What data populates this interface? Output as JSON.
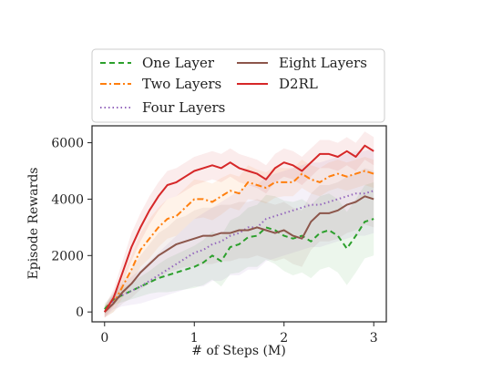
{
  "chart_data": {
    "type": "line",
    "xlabel": "# of Steps (M)",
    "ylabel": "Episode Rewards",
    "xlim": [
      -0.14,
      3.14
    ],
    "ylim": [
      -350,
      6600
    ],
    "xticks": [
      0,
      1,
      2,
      3
    ],
    "xtick_labels": [
      "0",
      "1",
      "2",
      "3"
    ],
    "yticks": [
      0,
      2000,
      4000,
      6000
    ],
    "ytick_labels": [
      "0",
      "2000",
      "4000",
      "6000"
    ],
    "grid": false,
    "legend_placement": "top (above plot)",
    "series": [
      {
        "name": "One Layer",
        "color": "#2ca02c",
        "dash": "dashed",
        "x": [
          0,
          0.1,
          0.2,
          0.3,
          0.4,
          0.5,
          0.6,
          0.7,
          0.8,
          0.9,
          1.0,
          1.1,
          1.2,
          1.3,
          1.4,
          1.5,
          1.6,
          1.7,
          1.8,
          1.9,
          2.0,
          2.1,
          2.2,
          2.3,
          2.4,
          2.5,
          2.6,
          2.7,
          2.8,
          2.9,
          3.0
        ],
        "y": [
          100,
          450,
          600,
          750,
          900,
          1050,
          1200,
          1300,
          1400,
          1500,
          1600,
          1750,
          2000,
          1800,
          2300,
          2400,
          2650,
          2700,
          3000,
          2900,
          2700,
          2600,
          2700,
          2500,
          2800,
          2900,
          2700,
          2250,
          2700,
          3200,
          3300
        ],
        "band": [
          200,
          200,
          250,
          300,
          350,
          400,
          500,
          600,
          650,
          700,
          750,
          800,
          850,
          900,
          950,
          1000,
          1050,
          1100,
          1150,
          1200,
          1250,
          1300,
          1300,
          1300,
          1300,
          1300,
          1300,
          1300,
          1300,
          1300,
          1300
        ]
      },
      {
        "name": "Two Layers",
        "color": "#ff7f0e",
        "dash": "dashdot",
        "x": [
          0,
          0.1,
          0.2,
          0.3,
          0.4,
          0.5,
          0.6,
          0.7,
          0.8,
          0.9,
          1.0,
          1.1,
          1.2,
          1.3,
          1.4,
          1.5,
          1.6,
          1.7,
          1.8,
          1.9,
          2.0,
          2.1,
          2.2,
          2.3,
          2.4,
          2.5,
          2.6,
          2.7,
          2.8,
          2.9,
          3.0
        ],
        "y": [
          0,
          300,
          900,
          1500,
          2200,
          2600,
          3000,
          3300,
          3400,
          3700,
          4000,
          4000,
          3900,
          4100,
          4300,
          4200,
          4600,
          4500,
          4400,
          4600,
          4600,
          4600,
          4900,
          4700,
          4600,
          4800,
          4900,
          4800,
          4900,
          5000,
          4900
        ],
        "band": [
          200,
          300,
          400,
          500,
          600,
          700,
          700,
          700,
          700,
          700,
          700,
          650,
          650,
          650,
          600,
          600,
          600,
          550,
          550,
          550,
          500,
          500,
          500,
          500,
          500,
          500,
          500,
          500,
          500,
          500,
          500
        ]
      },
      {
        "name": "Four Layers",
        "color": "#9467bd",
        "dash": "dotted",
        "x": [
          0,
          0.1,
          0.2,
          0.3,
          0.4,
          0.5,
          0.6,
          0.7,
          0.8,
          0.9,
          1.0,
          1.1,
          1.2,
          1.3,
          1.4,
          1.5,
          1.6,
          1.7,
          1.8,
          1.9,
          2.0,
          2.1,
          2.2,
          2.3,
          2.4,
          2.5,
          2.6,
          2.7,
          2.8,
          2.9,
          3.0
        ],
        "y": [
          0,
          400,
          600,
          750,
          900,
          1100,
          1300,
          1500,
          1700,
          1900,
          2100,
          2200,
          2400,
          2500,
          2700,
          2800,
          3000,
          3000,
          3300,
          3400,
          3500,
          3600,
          3700,
          3800,
          3800,
          3900,
          4000,
          4100,
          4200,
          4200,
          4300
        ],
        "band": [
          200,
          300,
          400,
          500,
          600,
          700,
          800,
          900,
          1000,
          1100,
          1200,
          1300,
          1300,
          1400,
          1400,
          1500,
          1500,
          1500,
          1500,
          1500,
          1500,
          1500,
          1500,
          1500,
          1500,
          1500,
          1500,
          1500,
          1500,
          1500,
          1500
        ]
      },
      {
        "name": "Eight Layers",
        "color": "#8c564b",
        "dash": "solid",
        "x": [
          0,
          0.1,
          0.2,
          0.3,
          0.4,
          0.5,
          0.6,
          0.7,
          0.8,
          0.9,
          1.0,
          1.1,
          1.2,
          1.3,
          1.4,
          1.5,
          1.6,
          1.7,
          1.8,
          1.9,
          2.0,
          2.1,
          2.2,
          2.3,
          2.4,
          2.5,
          2.6,
          2.7,
          2.8,
          2.9,
          3.0
        ],
        "y": [
          0,
          300,
          700,
          1000,
          1400,
          1700,
          2000,
          2200,
          2400,
          2500,
          2600,
          2700,
          2700,
          2800,
          2800,
          2900,
          2900,
          3000,
          2900,
          2800,
          2900,
          2700,
          2600,
          3200,
          3500,
          3500,
          3600,
          3800,
          3900,
          4100,
          4000
        ],
        "band": [
          200,
          300,
          400,
          500,
          600,
          700,
          800,
          800,
          900,
          900,
          1000,
          1000,
          1000,
          1000,
          1000,
          1000,
          1000,
          1000,
          1000,
          1000,
          1000,
          1000,
          1000,
          1000,
          1000,
          1000,
          1000,
          1000,
          1000,
          1000,
          1000
        ]
      },
      {
        "name": "D2RL",
        "color": "#d62728",
        "dash": "solid",
        "x": [
          0,
          0.1,
          0.2,
          0.3,
          0.4,
          0.5,
          0.6,
          0.7,
          0.8,
          0.9,
          1.0,
          1.1,
          1.2,
          1.3,
          1.4,
          1.5,
          1.6,
          1.7,
          1.8,
          1.9,
          2.0,
          2.1,
          2.2,
          2.3,
          2.4,
          2.5,
          2.6,
          2.7,
          2.8,
          2.9,
          3.0
        ],
        "y": [
          0,
          500,
          1400,
          2300,
          3000,
          3600,
          4100,
          4500,
          4600,
          4800,
          5000,
          5100,
          5200,
          5100,
          5300,
          5100,
          5000,
          4900,
          4700,
          5100,
          5300,
          5200,
          5000,
          5300,
          5600,
          5600,
          5500,
          5700,
          5500,
          5900,
          5700
        ],
        "band": [
          200,
          300,
          400,
          500,
          500,
          500,
          500,
          500,
          500,
          500,
          500,
          500,
          500,
          500,
          500,
          500,
          500,
          500,
          500,
          500,
          500,
          500,
          500,
          500,
          500,
          500,
          500,
          500,
          500,
          500,
          500
        ]
      }
    ]
  }
}
